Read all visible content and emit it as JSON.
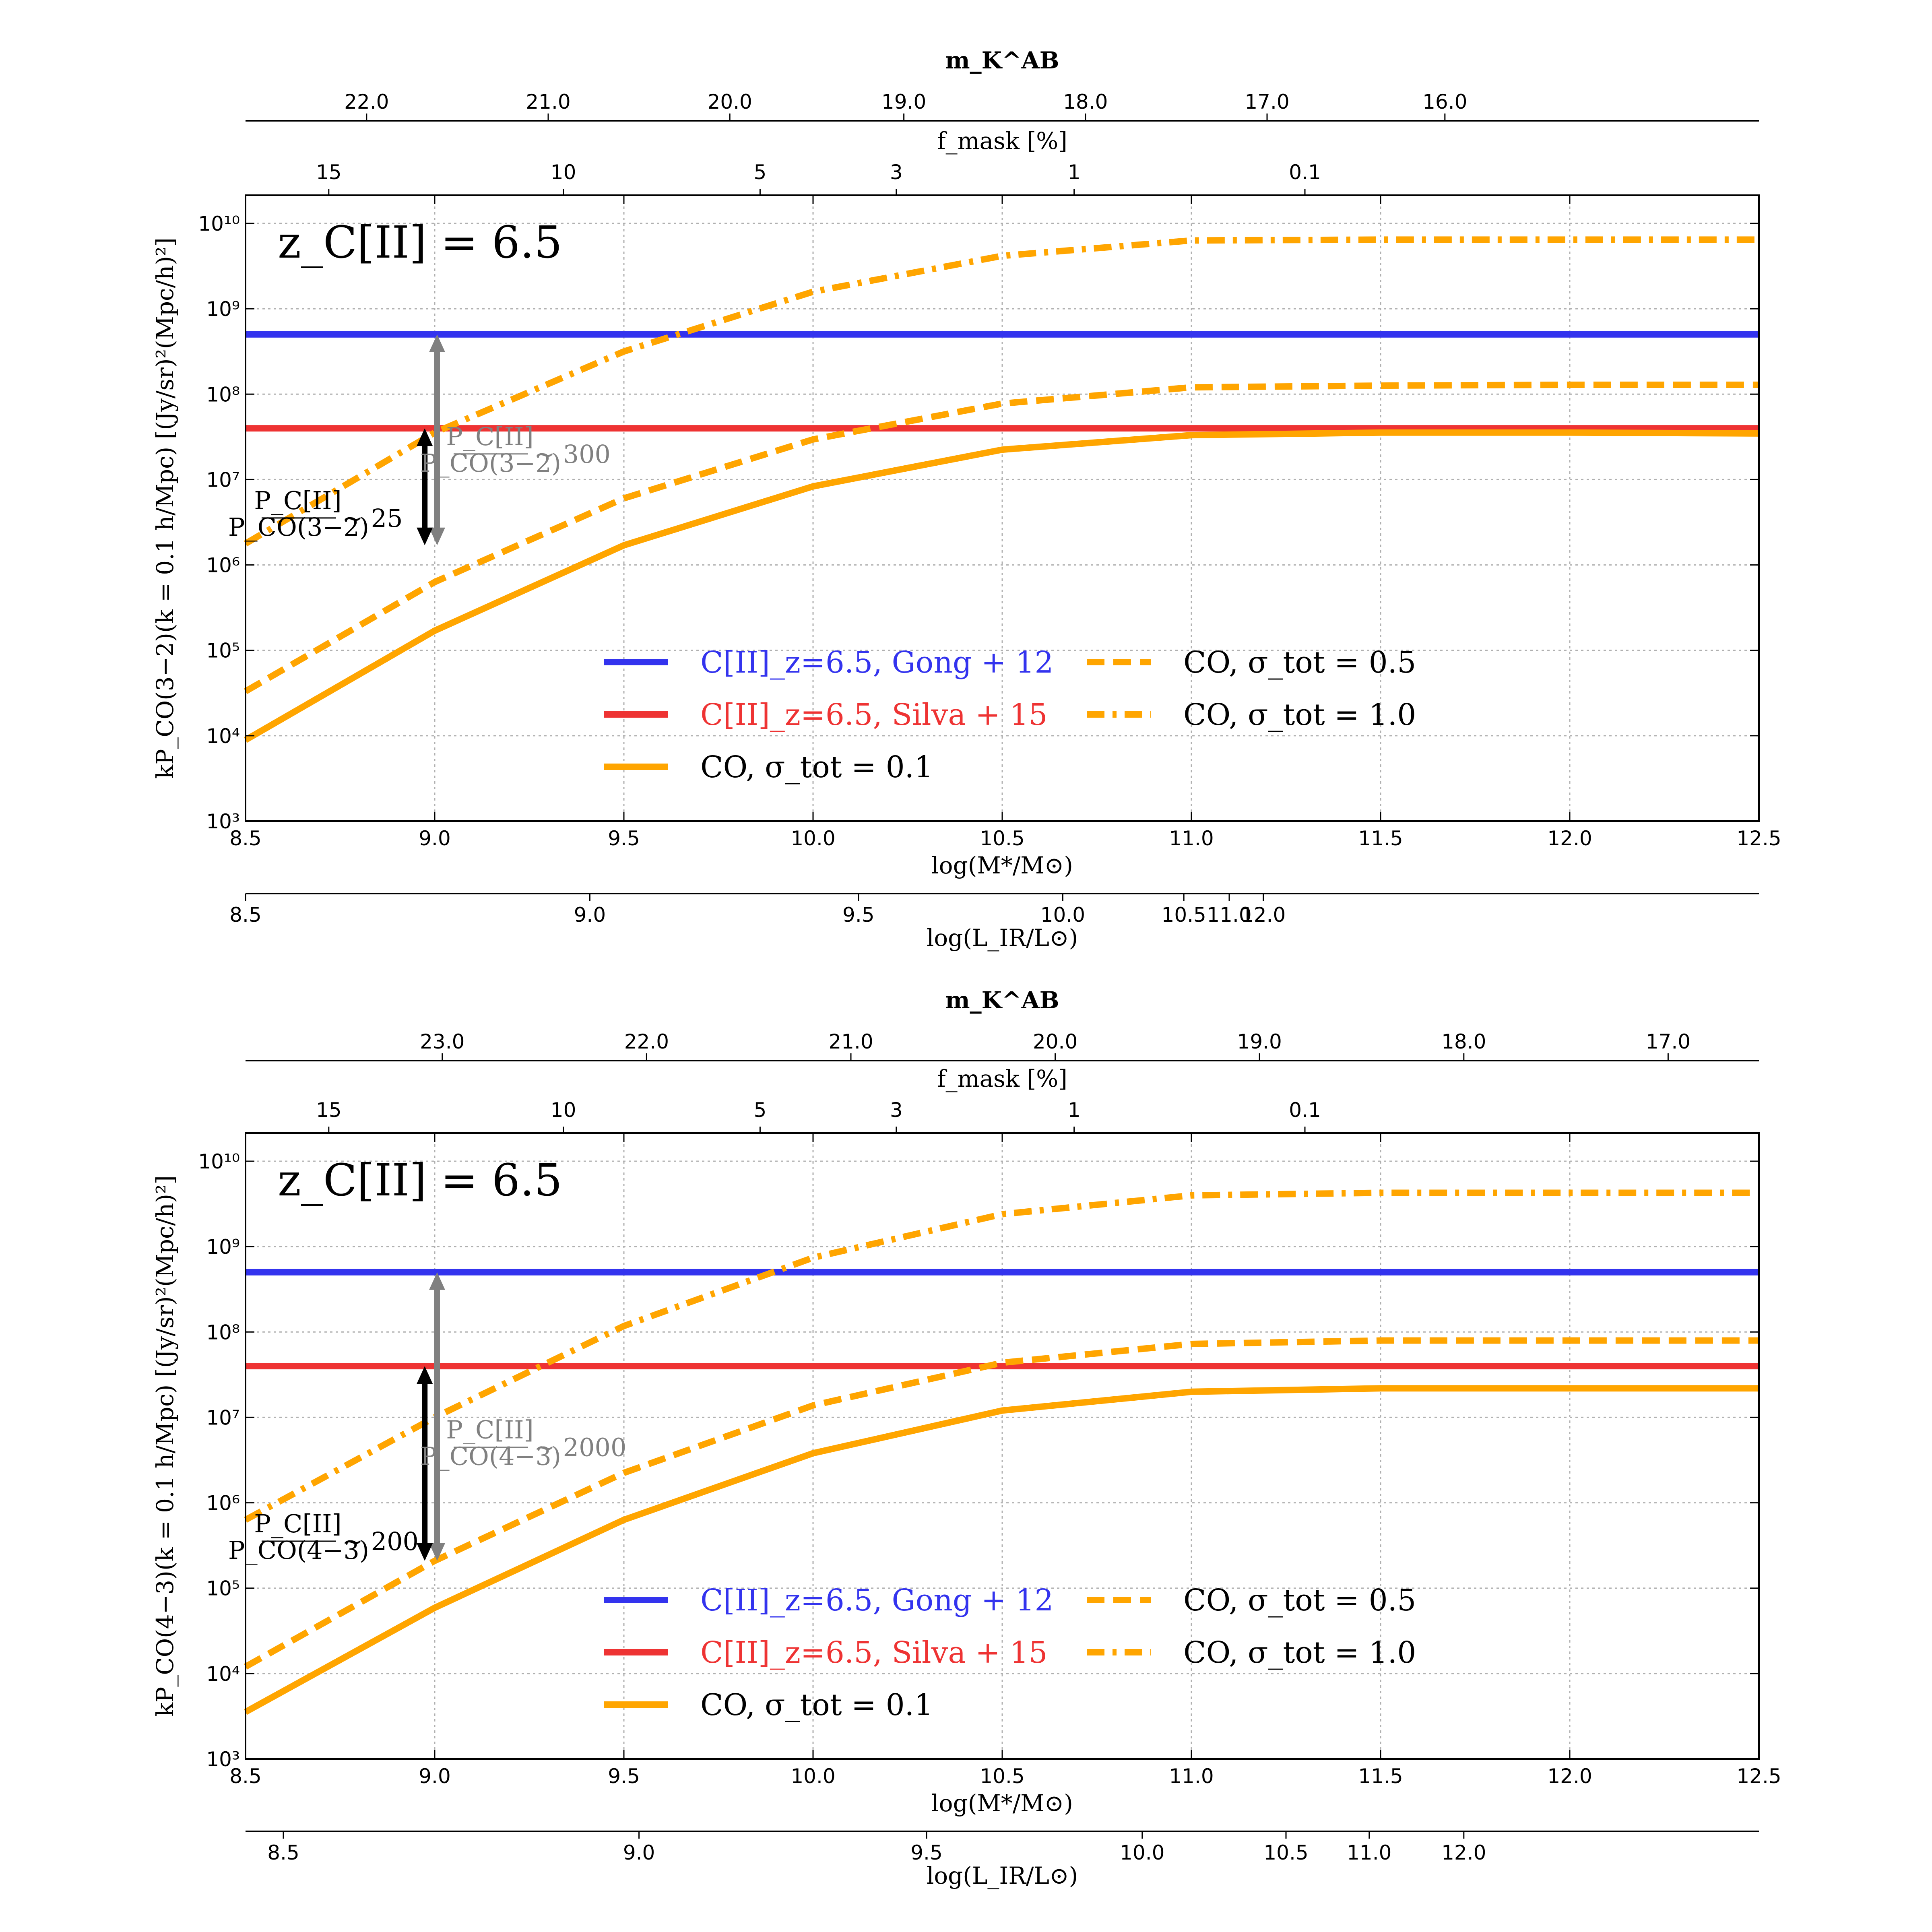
{
  "colors": {
    "blue": "#3333ee",
    "red": "#ee3333",
    "orange": "#ffa500",
    "gray": "#808080",
    "grid": "#b0b0b0"
  },
  "chart_data": [
    {
      "type": "line",
      "title": "",
      "redshift_label": "z_C[II] = 6.5",
      "xlabel": "log(M*/M⊙)",
      "ylabel": "kP_CO(3−2)(k = 0.1 h/Mpc) [(Jy/sr)²(Mpc/h)²]",
      "xlim": [
        8.5,
        12.5
      ],
      "ylim_log10": [
        3,
        10.33
      ],
      "y_scale": "log",
      "grid": true,
      "x_ticks": [
        "8.5",
        "9.0",
        "9.5",
        "10.0",
        "10.5",
        "11.0",
        "11.5",
        "12.0",
        "12.5"
      ],
      "y_ticks": [
        "10³",
        "10⁴",
        "10⁵",
        "10⁶",
        "10⁷",
        "10⁸",
        "10⁹",
        "10¹⁰"
      ],
      "top_axis_mk": {
        "label": "m_K^AB",
        "ticks": [
          {
            "x": 8.82,
            "label": "22.0"
          },
          {
            "x": 9.3,
            "label": "21.0"
          },
          {
            "x": 9.78,
            "label": "20.0"
          },
          {
            "x": 10.24,
            "label": "19.0"
          },
          {
            "x": 10.72,
            "label": "18.0"
          },
          {
            "x": 11.2,
            "label": "17.0"
          },
          {
            "x": 11.67,
            "label": "16.0"
          }
        ]
      },
      "top_axis_fmask": {
        "label": "f_mask [%]",
        "ticks": [
          {
            "x": 8.72,
            "label": "15"
          },
          {
            "x": 9.34,
            "label": "10"
          },
          {
            "x": 9.86,
            "label": "5"
          },
          {
            "x": 10.22,
            "label": "3"
          },
          {
            "x": 10.69,
            "label": "1"
          },
          {
            "x": 11.3,
            "label": "0.1"
          }
        ]
      },
      "bottom_axis_lir": {
        "label": "log(L_IR/L⊙)",
        "ticks": [
          {
            "x": 8.5,
            "label": "8.5"
          },
          {
            "x": 9.41,
            "label": "9.0"
          },
          {
            "x": 10.12,
            "label": "9.5"
          },
          {
            "x": 10.66,
            "label": "10.0"
          },
          {
            "x": 10.98,
            "label": "10.5"
          },
          {
            "x": 11.1,
            "label": "11.0"
          },
          {
            "x": 11.19,
            "label": "12.0"
          }
        ]
      },
      "series": [
        {
          "name": "C[II]_z=6.5, Gong + 12",
          "style": "solid",
          "color": "blue",
          "x": [
            8.5,
            12.5
          ],
          "log10_y": [
            8.7,
            8.7
          ]
        },
        {
          "name": "C[II]_z=6.5, Silva + 15",
          "style": "solid",
          "color": "red",
          "x": [
            8.5,
            12.5
          ],
          "log10_y": [
            7.6,
            7.6
          ]
        },
        {
          "name": "CO, σ_tot = 0.1",
          "style": "solid",
          "color": "orange",
          "x": [
            8.5,
            9.0,
            9.5,
            10.0,
            10.5,
            11.0,
            11.5,
            12.0,
            12.5
          ],
          "log10_y": [
            3.95,
            5.23,
            6.23,
            6.92,
            7.35,
            7.52,
            7.55,
            7.55,
            7.54
          ]
        },
        {
          "name": "CO, σ_tot = 0.5",
          "style": "dashed",
          "color": "orange",
          "x": [
            8.5,
            9.0,
            9.5,
            10.0,
            10.5,
            11.0,
            11.5,
            12.0,
            12.5
          ],
          "log10_y": [
            4.52,
            5.8,
            6.78,
            7.47,
            7.89,
            8.08,
            8.1,
            8.11,
            8.11
          ]
        },
        {
          "name": "CO, σ_tot = 1.0",
          "style": "dashdot",
          "color": "orange",
          "x": [
            8.5,
            9.0,
            9.5,
            10.0,
            10.5,
            11.0,
            11.5,
            12.0,
            12.5
          ],
          "log10_y": [
            6.25,
            7.55,
            8.5,
            9.2,
            9.62,
            9.8,
            9.81,
            9.81,
            9.81
          ]
        }
      ],
      "annotations": [
        {
          "text": "P_C[II]/P_CO(3−2) ~ 300",
          "prefix": "",
          "ratio_value": "∼ 300",
          "num": "P_C[II]",
          "den": "P_CO(3−2)",
          "color": "gray"
        },
        {
          "text": "P_C[II]/P_CO(3−2) ~ 25",
          "ratio_value": "∼ 25",
          "num": "P_C[II]",
          "den": "P_CO(3−2)",
          "color": "black"
        }
      ],
      "arrows": [
        {
          "color": "gray",
          "x": 9.0,
          "log10_from": 6.23,
          "log10_to": 8.7
        },
        {
          "color": "black",
          "x": 8.98,
          "log10_from": 6.23,
          "log10_to": 7.6
        }
      ]
    },
    {
      "type": "line",
      "title": "",
      "redshift_label": "z_C[II] = 6.5",
      "xlabel": "log(M*/M⊙)",
      "ylabel": "kP_CO(4−3)(k = 0.1 h/Mpc) [(Jy/sr)²(Mpc/h)²]",
      "xlim": [
        8.5,
        12.5
      ],
      "ylim_log10": [
        3,
        10.33
      ],
      "y_scale": "log",
      "grid": true,
      "x_ticks": [
        "8.5",
        "9.0",
        "9.5",
        "10.0",
        "10.5",
        "11.0",
        "11.5",
        "12.0",
        "12.5"
      ],
      "y_ticks": [
        "10³",
        "10⁴",
        "10⁵",
        "10⁶",
        "10⁷",
        "10⁸",
        "10⁹",
        "10¹⁰"
      ],
      "top_axis_mk": {
        "label": "m_K^AB",
        "ticks": [
          {
            "x": 9.02,
            "label": "23.0"
          },
          {
            "x": 9.56,
            "label": "22.0"
          },
          {
            "x": 10.1,
            "label": "21.0"
          },
          {
            "x": 10.64,
            "label": "20.0"
          },
          {
            "x": 11.18,
            "label": "19.0"
          },
          {
            "x": 11.72,
            "label": "18.0"
          },
          {
            "x": 12.26,
            "label": "17.0"
          }
        ]
      },
      "top_axis_fmask": {
        "label": "f_mask [%]",
        "ticks": [
          {
            "x": 8.72,
            "label": "15"
          },
          {
            "x": 9.34,
            "label": "10"
          },
          {
            "x": 9.86,
            "label": "5"
          },
          {
            "x": 10.22,
            "label": "3"
          },
          {
            "x": 10.69,
            "label": "1"
          },
          {
            "x": 11.3,
            "label": "0.1"
          }
        ]
      },
      "bottom_axis_lir": {
        "label": "log(L_IR/L⊙)",
        "ticks": [
          {
            "x": 8.6,
            "label": "8.5"
          },
          {
            "x": 9.54,
            "label": "9.0"
          },
          {
            "x": 10.3,
            "label": "9.5"
          },
          {
            "x": 10.87,
            "label": "10.0"
          },
          {
            "x": 11.25,
            "label": "10.5"
          },
          {
            "x": 11.47,
            "label": "11.0"
          },
          {
            "x": 11.72,
            "label": "12.0"
          }
        ]
      },
      "series": [
        {
          "name": "C[II]_z=6.5, Gong + 12",
          "style": "solid",
          "color": "blue",
          "x": [
            8.5,
            12.5
          ],
          "log10_y": [
            8.7,
            8.7
          ]
        },
        {
          "name": "C[II]_z=6.5, Silva + 15",
          "style": "solid",
          "color": "red",
          "x": [
            8.5,
            12.5
          ],
          "log10_y": [
            7.6,
            7.6
          ]
        },
        {
          "name": "CO, σ_tot = 0.1",
          "style": "solid",
          "color": "orange",
          "x": [
            8.5,
            9.0,
            9.5,
            10.0,
            10.5,
            11.0,
            11.5,
            12.0,
            12.5
          ],
          "log10_y": [
            3.55,
            4.77,
            5.8,
            6.58,
            7.08,
            7.3,
            7.34,
            7.34,
            7.34
          ]
        },
        {
          "name": "CO, σ_tot = 0.5",
          "style": "dashed",
          "color": "orange",
          "x": [
            8.5,
            9.0,
            9.5,
            10.0,
            10.5,
            11.0,
            11.5,
            12.0,
            12.5
          ],
          "log10_y": [
            4.08,
            5.32,
            6.35,
            7.14,
            7.64,
            7.86,
            7.9,
            7.9,
            7.9
          ]
        },
        {
          "name": "CO, σ_tot = 1.0",
          "style": "dashdot",
          "color": "orange",
          "x": [
            8.5,
            9.0,
            9.5,
            10.0,
            10.5,
            11.0,
            11.5,
            12.0,
            12.5
          ],
          "log10_y": [
            5.8,
            7.0,
            8.07,
            8.87,
            9.38,
            9.6,
            9.63,
            9.63,
            9.63
          ]
        }
      ],
      "annotations": [
        {
          "text": "P_C[II]/P_CO(4−3) ~ 2000",
          "ratio_value": "∼ 2000",
          "num": "P_C[II]",
          "den": "P_CO(4−3)",
          "color": "gray"
        },
        {
          "text": "P_C[II]/P_CO(4−3) ~ 200",
          "ratio_value": "∼ 200",
          "num": "P_C[II]",
          "den": "P_CO(4−3)",
          "color": "black"
        }
      ],
      "arrows": [
        {
          "color": "gray",
          "x": 9.0,
          "log10_from": 5.32,
          "log10_to": 8.7
        },
        {
          "color": "black",
          "x": 8.98,
          "log10_from": 5.32,
          "log10_to": 7.6
        }
      ]
    }
  ]
}
